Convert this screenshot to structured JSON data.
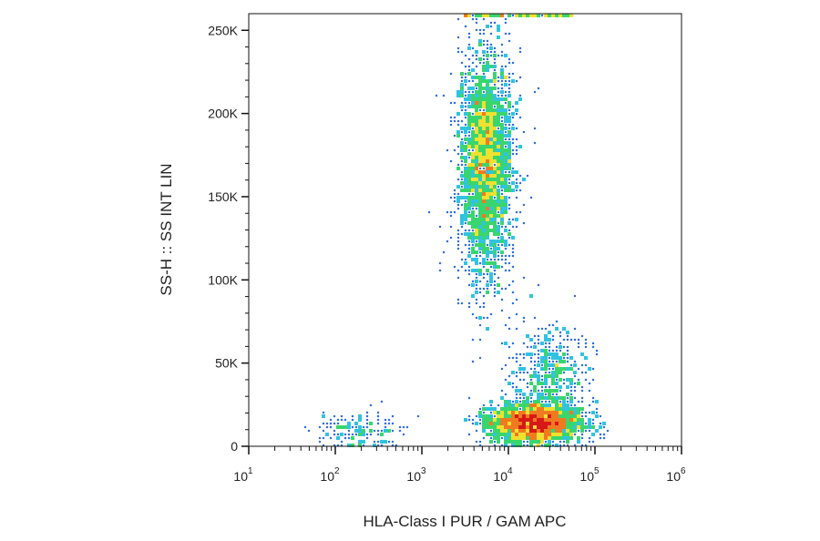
{
  "chart_data": {
    "type": "scatter",
    "subtype": "flow-cytometry-density-dot-plot",
    "xlabel": "HLA-Class I PUR / GAM APC",
    "ylabel": "SS-H :: SS INT LIN",
    "x_scale": "log",
    "y_scale": "linear",
    "xlim": [
      10,
      1000000
    ],
    "ylim": [
      0,
      260000
    ],
    "x_ticks": [
      {
        "base": "10",
        "exp": "1",
        "value": 10
      },
      {
        "base": "10",
        "exp": "2",
        "value": 100
      },
      {
        "base": "10",
        "exp": "3",
        "value": 1000
      },
      {
        "base": "10",
        "exp": "4",
        "value": 10000
      },
      {
        "base": "10",
        "exp": "5",
        "value": 100000
      },
      {
        "base": "10",
        "exp": "6",
        "value": 1000000
      }
    ],
    "y_ticks": [
      {
        "label": "0",
        "value": 0
      },
      {
        "label": "50K",
        "value": 50000
      },
      {
        "label": "100K",
        "value": 100000
      },
      {
        "label": "150K",
        "value": 150000
      },
      {
        "label": "200K",
        "value": 200000
      },
      {
        "label": "250K",
        "value": 250000
      }
    ],
    "grid": false,
    "color_scale": [
      "#1a1aa8",
      "#2f6fe0",
      "#31c3e0",
      "#39d66e",
      "#f0e030",
      "#f07a20",
      "#d81818"
    ],
    "populations": [
      {
        "x_center": 5500,
        "x_log_sd": 0.16,
        "y_center": 170000,
        "y_sd": 35000,
        "count": 2600
      },
      {
        "x_center": 20000,
        "x_log_sd": 0.28,
        "y_center": 14000,
        "y_sd": 6000,
        "count": 2200
      },
      {
        "x_center": 30000,
        "x_log_sd": 0.22,
        "y_center": 45000,
        "y_sd": 14000,
        "count": 450
      },
      {
        "x_center": 180,
        "x_log_sd": 0.25,
        "y_center": 10000,
        "y_sd": 6000,
        "count": 160
      }
    ]
  }
}
